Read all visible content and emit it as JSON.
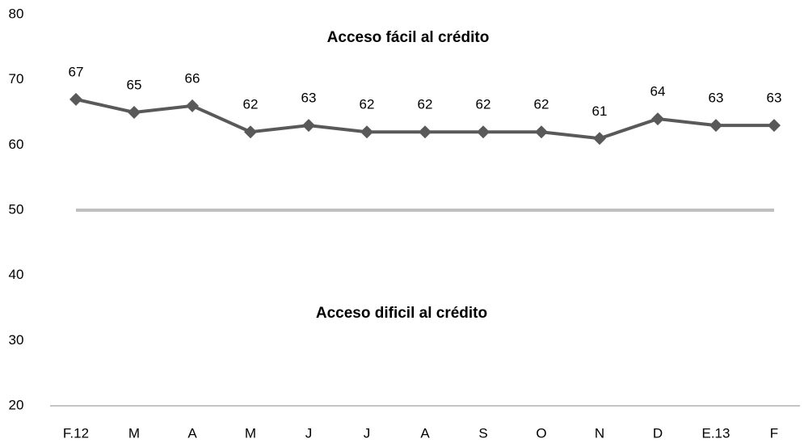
{
  "chart_data": {
    "type": "line",
    "annotations": [
      "Acceso fácil al crédito",
      "Acceso dificil al crédito"
    ],
    "categories": [
      "F.12",
      "M",
      "A",
      "M",
      "J",
      "J",
      "A",
      "S",
      "O",
      "N",
      "D",
      "E.13",
      "F"
    ],
    "series": [
      {
        "color": "#595959",
        "values": [
          67,
          65,
          66,
          62,
          63,
          62,
          62,
          62,
          62,
          61,
          64,
          63,
          63
        ]
      }
    ],
    "reference_value": 50,
    "reference_color": "#bfbfbf",
    "ylim": [
      20,
      80
    ],
    "yticks": [
      20,
      30,
      40,
      50,
      60,
      70,
      80
    ],
    "grid": false
  }
}
